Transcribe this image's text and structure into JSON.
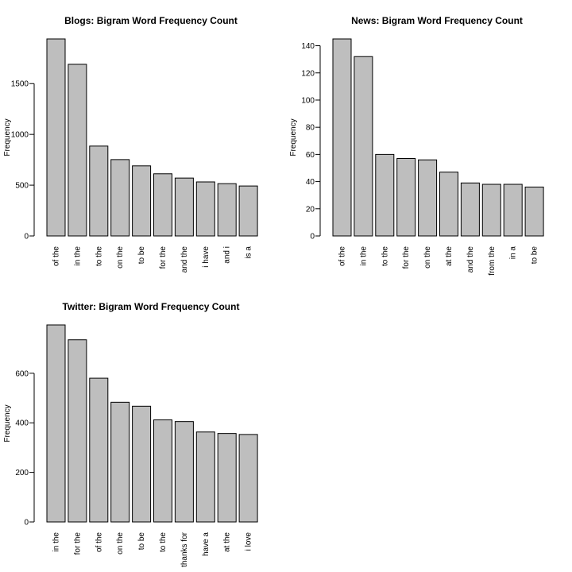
{
  "chart_data": [
    {
      "type": "bar",
      "title": "Blogs: Bigram Word Frequency Count",
      "xlabel": "",
      "ylabel": "Frequency",
      "categories": [
        "of the",
        "in the",
        "to the",
        "on the",
        "to be",
        "for the",
        "and the",
        "i have",
        "and i",
        "is a"
      ],
      "values": [
        1940,
        1690,
        885,
        752,
        690,
        612,
        570,
        532,
        515,
        492
      ],
      "yticks": [
        0,
        500,
        1000,
        1500
      ],
      "ylim": [
        0,
        1940
      ],
      "bar_color": "#bebebe"
    },
    {
      "type": "bar",
      "title": "News: Bigram Word Frequency Count",
      "xlabel": "",
      "ylabel": "Frequency",
      "categories": [
        "of the",
        "in the",
        "to the",
        "for the",
        "on the",
        "at the",
        "and the",
        "from the",
        "in a",
        "to be"
      ],
      "values": [
        145,
        132,
        60,
        57,
        56,
        47,
        39,
        38,
        38,
        36
      ],
      "yticks": [
        0,
        20,
        40,
        60,
        80,
        100,
        120,
        140
      ],
      "ylim": [
        0,
        145
      ],
      "bar_color": "#bebebe"
    },
    {
      "type": "bar",
      "title": "Twitter: Bigram Word Frequency Count",
      "xlabel": "",
      "ylabel": "Frequency",
      "categories": [
        "in the",
        "for the",
        "of the",
        "on the",
        "to be",
        "to the",
        "thanks for",
        "have a",
        "at the",
        "i love"
      ],
      "values": [
        795,
        735,
        580,
        483,
        467,
        412,
        405,
        363,
        357,
        353
      ],
      "yticks": [
        0,
        200,
        400,
        600
      ],
      "ylim": [
        0,
        795
      ],
      "bar_color": "#bebebe"
    }
  ]
}
